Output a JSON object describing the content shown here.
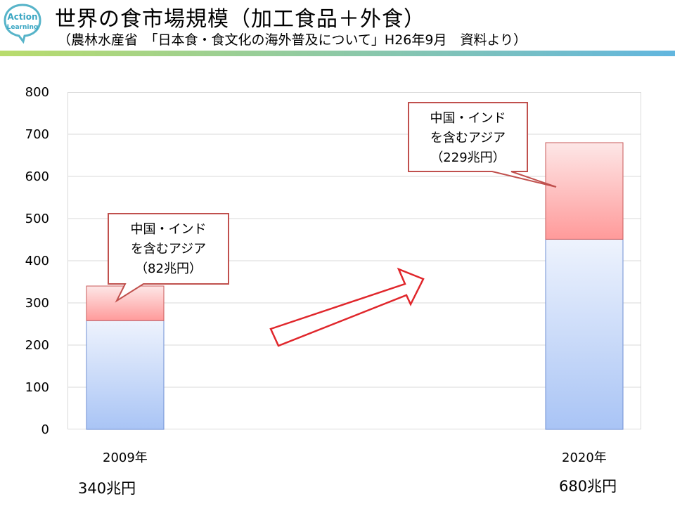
{
  "header": {
    "title": "世界の食市場規模（加工食品＋外食）",
    "subtitle": "（農林水産省　「日本食・食文化の海外普及について」H26年9月　資料より）",
    "logo_text_1": "Action",
    "logo_text_2": "Learning"
  },
  "chart_data": {
    "type": "bar",
    "stacked": true,
    "categories": [
      "2009年",
      "2020年"
    ],
    "totals_text": [
      "340兆円",
      "680兆円"
    ],
    "series": [
      {
        "values": [
          258,
          451
        ],
        "color": "#a9c4f5"
      },
      {
        "values": [
          82,
          229
        ],
        "color": "#ff9a9a"
      }
    ],
    "ylim": [
      0,
      800
    ],
    "yticks": [
      "0",
      "100",
      "200",
      "300",
      "400",
      "500",
      "600",
      "700",
      "800"
    ],
    "grid": true,
    "annotations": [
      {
        "lines": [
          "中国・インド",
          "を含むアジア",
          "（82兆円）"
        ]
      },
      {
        "lines": [
          "中国・インド",
          "を含むアジア",
          "（229兆円）"
        ]
      }
    ]
  }
}
